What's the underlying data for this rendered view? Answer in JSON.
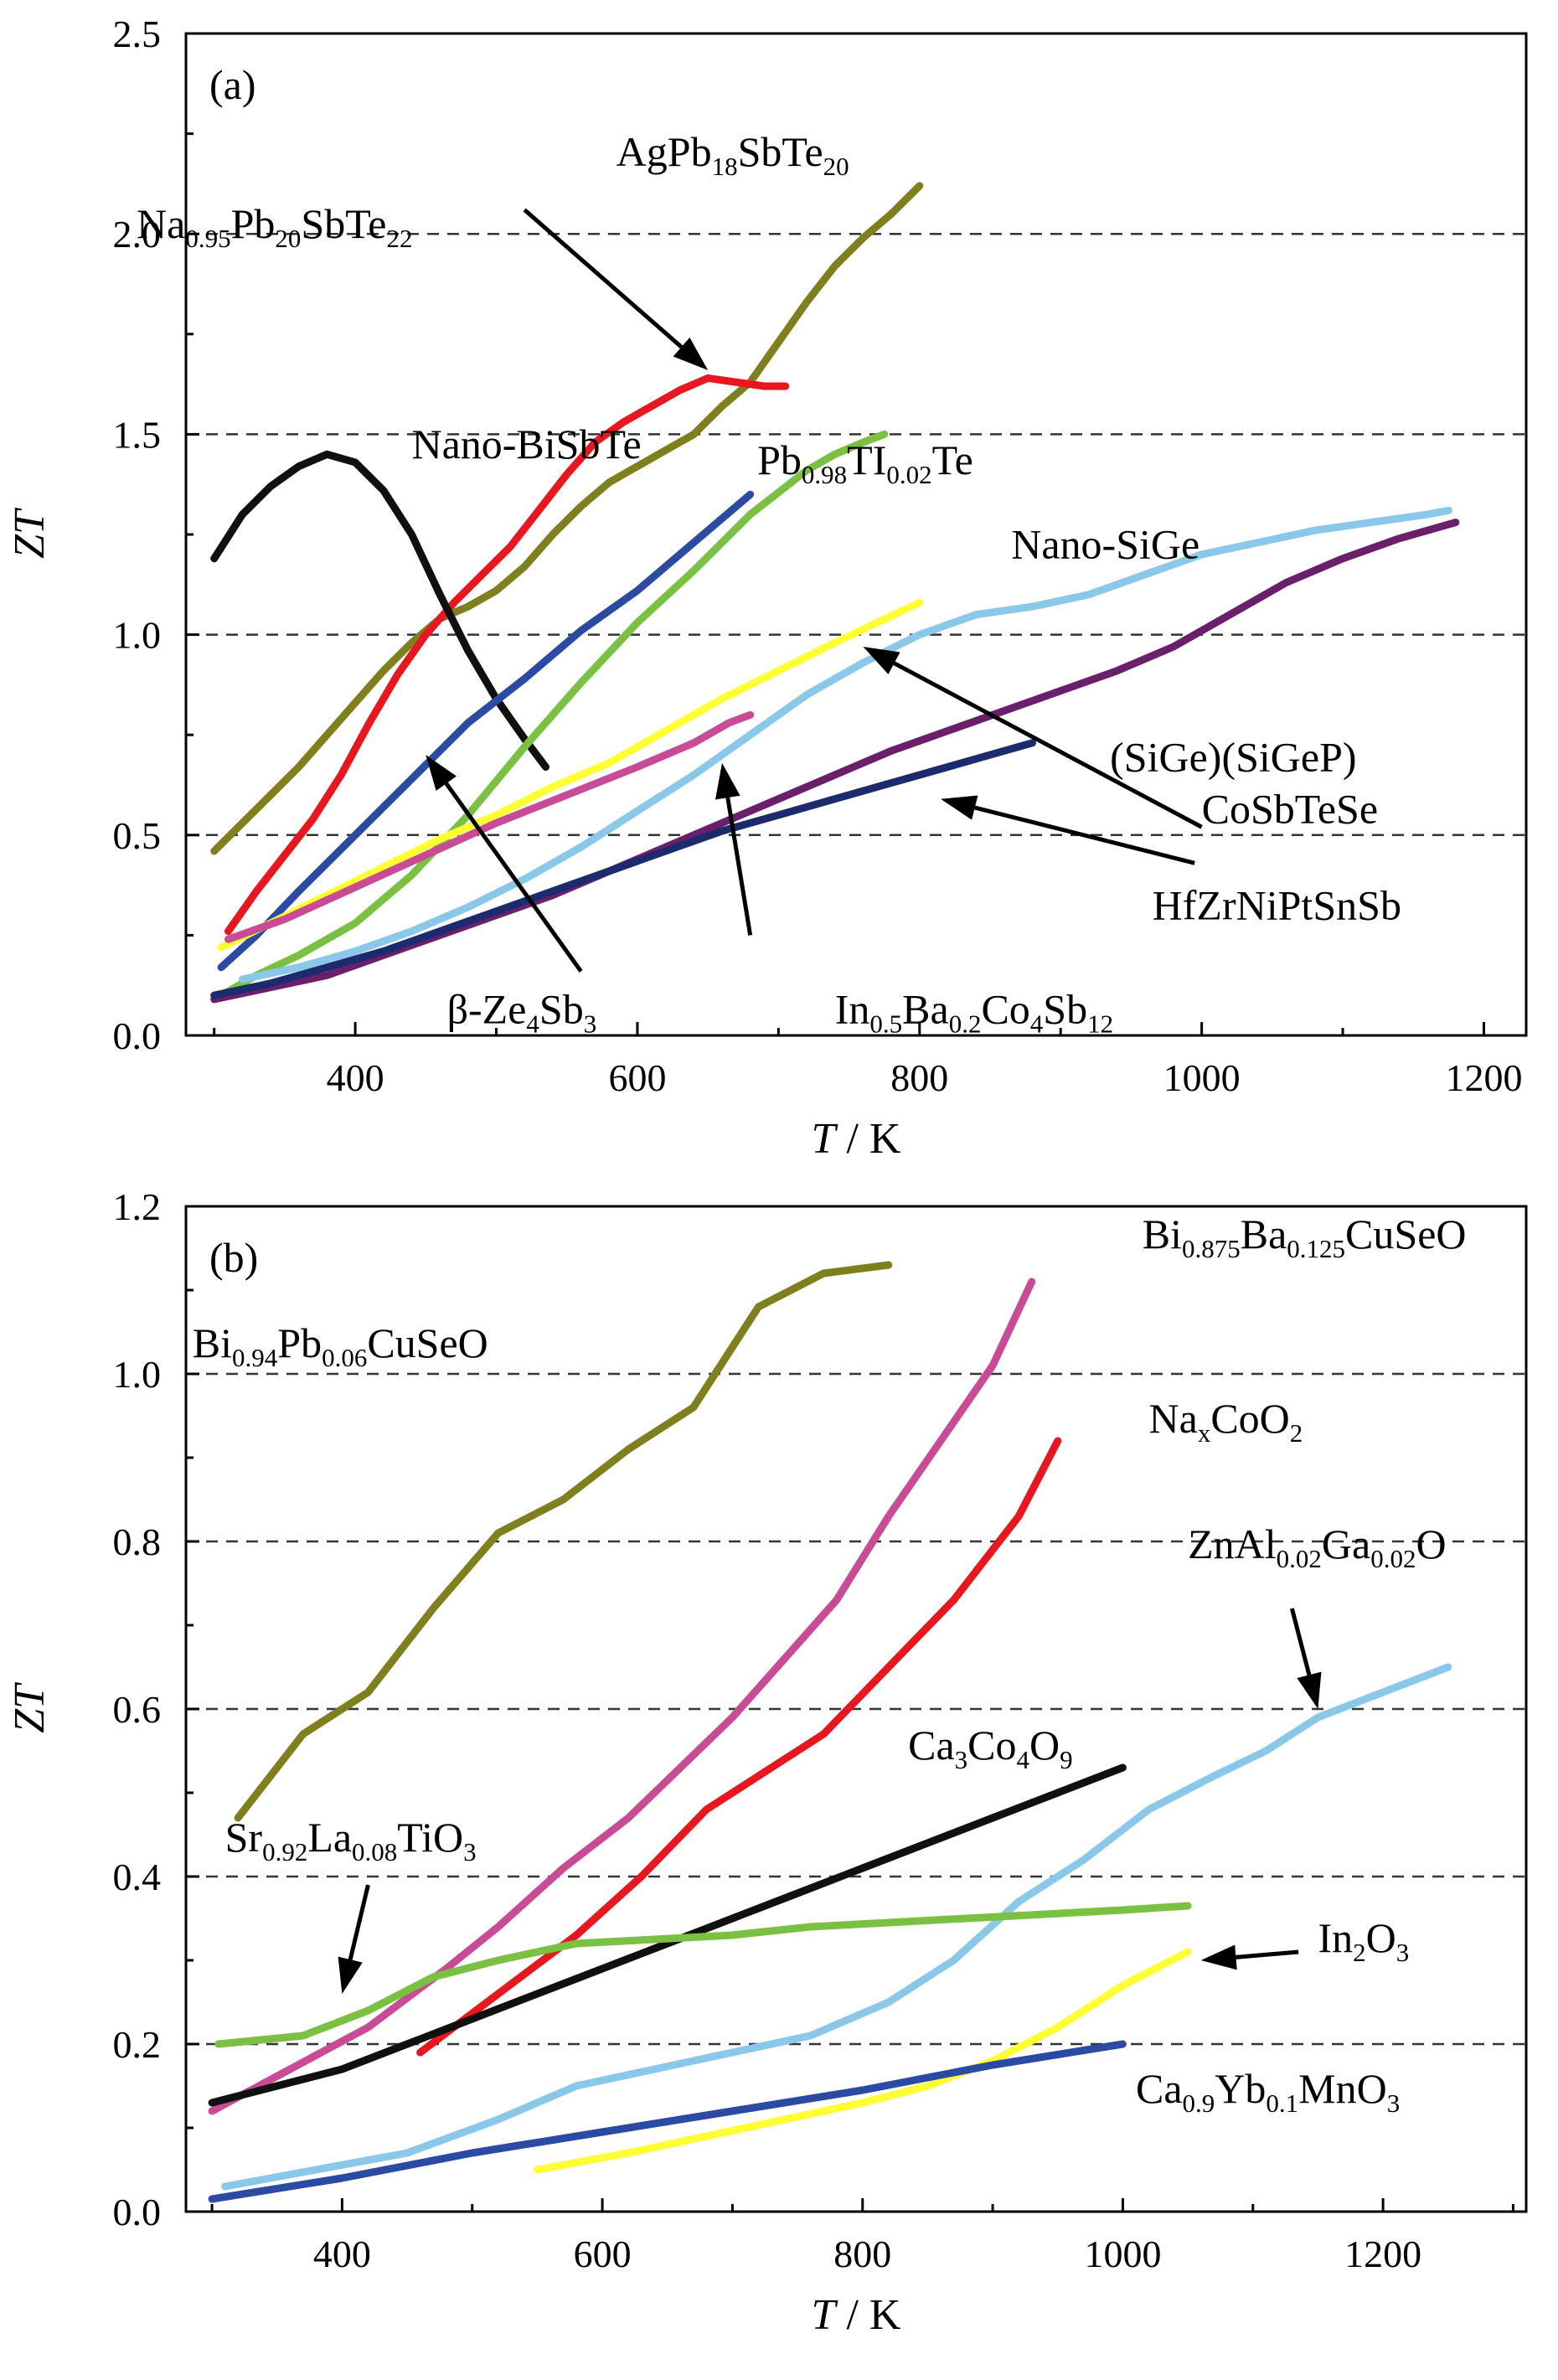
{
  "chart_data": [
    {
      "type": "line",
      "panel_label": "(a)",
      "xlabel_var": "T",
      "xlabel_unit": " / K",
      "ylabel": "ZT",
      "xlim": [
        280,
        1230
      ],
      "ylim": [
        0,
        2.5
      ],
      "xticks": [
        400,
        600,
        800,
        1000,
        1200
      ],
      "yticks": [
        0.0,
        0.5,
        1.0,
        1.5,
        2.0,
        2.5
      ],
      "ytick_labels": [
        "0.0",
        "0.5",
        "1.0",
        "1.5",
        "2.0",
        "2.5"
      ],
      "grid": "horizontal dashed at 0.5, 1.0, 1.5, 2.0",
      "series": [
        {
          "color": "#7f7f1e",
          "x": [
            300,
            320,
            340,
            360,
            380,
            400,
            420,
            440,
            460,
            480,
            500,
            520,
            540,
            560,
            580,
            600,
            620,
            640,
            660,
            680,
            700,
            720,
            740,
            760,
            780,
            800
          ],
          "y": [
            0.46,
            0.53,
            0.6,
            0.67,
            0.75,
            0.83,
            0.91,
            0.98,
            1.04,
            1.07,
            1.11,
            1.17,
            1.25,
            1.32,
            1.38,
            1.42,
            1.46,
            1.5,
            1.57,
            1.63,
            1.73,
            1.83,
            1.92,
            1.99,
            2.05,
            2.12
          ]
        },
        {
          "color": "#e8161e",
          "x": [
            310,
            330,
            350,
            370,
            390,
            410,
            430,
            450,
            470,
            490,
            510,
            530,
            550,
            570,
            590,
            610,
            630,
            650,
            670,
            690,
            705
          ],
          "y": [
            0.26,
            0.36,
            0.45,
            0.54,
            0.65,
            0.78,
            0.9,
            1.0,
            1.08,
            1.15,
            1.22,
            1.31,
            1.4,
            1.48,
            1.53,
            1.57,
            1.61,
            1.64,
            1.63,
            1.62,
            1.62
          ]
        },
        {
          "color": "#101010",
          "x": [
            300,
            320,
            340,
            360,
            380,
            400,
            420,
            440,
            460,
            480,
            500,
            520,
            535
          ],
          "y": [
            1.19,
            1.3,
            1.37,
            1.42,
            1.45,
            1.43,
            1.36,
            1.25,
            1.1,
            0.96,
            0.84,
            0.74,
            0.67
          ]
        },
        {
          "color": "#7ac143",
          "x": [
            305,
            330,
            360,
            400,
            440,
            480,
            520,
            560,
            600,
            640,
            680,
            720,
            740,
            760,
            775
          ],
          "y": [
            0.1,
            0.15,
            0.2,
            0.28,
            0.4,
            0.55,
            0.72,
            0.88,
            1.03,
            1.16,
            1.3,
            1.41,
            1.45,
            1.48,
            1.5
          ]
        },
        {
          "color": "#2a4aa3",
          "x": [
            305,
            330,
            360,
            400,
            440,
            480,
            520,
            560,
            600,
            640,
            680
          ],
          "y": [
            0.17,
            0.25,
            0.36,
            0.5,
            0.64,
            0.78,
            0.89,
            1.01,
            1.11,
            1.23,
            1.35
          ]
        },
        {
          "color": "#ffff33",
          "x": [
            305,
            340,
            380,
            420,
            460,
            500,
            540,
            580,
            620,
            660,
            700,
            740,
            770,
            800
          ],
          "y": [
            0.22,
            0.28,
            0.35,
            0.42,
            0.49,
            0.55,
            0.62,
            0.68,
            0.76,
            0.84,
            0.91,
            0.98,
            1.03,
            1.08
          ]
        },
        {
          "color": "#c94b96",
          "x": [
            310,
            350,
            400,
            450,
            500,
            550,
            600,
            640,
            665,
            680
          ],
          "y": [
            0.24,
            0.29,
            0.37,
            0.45,
            0.53,
            0.6,
            0.67,
            0.73,
            0.78,
            0.8
          ]
        },
        {
          "color": "#8ac8ea",
          "x": [
            320,
            360,
            400,
            440,
            480,
            520,
            560,
            600,
            640,
            680,
            720,
            760,
            800,
            840,
            880,
            920,
            960,
            1000,
            1040,
            1080,
            1120,
            1160,
            1175
          ],
          "y": [
            0.14,
            0.17,
            0.21,
            0.26,
            0.32,
            0.39,
            0.47,
            0.56,
            0.65,
            0.75,
            0.85,
            0.93,
            1.0,
            1.05,
            1.07,
            1.1,
            1.15,
            1.2,
            1.23,
            1.26,
            1.28,
            1.3,
            1.31
          ]
        },
        {
          "color": "#6b1f6b",
          "x": [
            300,
            340,
            380,
            420,
            460,
            500,
            540,
            580,
            620,
            660,
            700,
            740,
            780,
            820,
            860,
            900,
            940,
            980,
            1020,
            1060,
            1100,
            1140,
            1180
          ],
          "y": [
            0.09,
            0.12,
            0.15,
            0.2,
            0.25,
            0.3,
            0.35,
            0.41,
            0.47,
            0.53,
            0.59,
            0.65,
            0.71,
            0.76,
            0.81,
            0.86,
            0.91,
            0.97,
            1.05,
            1.13,
            1.19,
            1.24,
            1.28
          ]
        },
        {
          "color": "#1c2b6e",
          "x": [
            300,
            340,
            380,
            420,
            460,
            500,
            540,
            580,
            620,
            660,
            700,
            740,
            780,
            820,
            860,
            880
          ],
          "y": [
            0.1,
            0.13,
            0.17,
            0.21,
            0.26,
            0.31,
            0.36,
            0.41,
            0.46,
            0.51,
            0.55,
            0.59,
            0.63,
            0.67,
            0.71,
            0.73
          ]
        }
      ],
      "annotations": [
        {
          "text": "Na",
          "sub": [
            "0.95",
            "20",
            "22"
          ],
          "parts": [
            "Pb",
            "SbTe"
          ],
          "x": 245,
          "y": 1.99,
          "arrow": {
            "from": [
              520,
              2.06
            ],
            "to": [
              650,
              1.66
            ]
          }
        },
        {
          "text": "AgPb",
          "sub": [
            "18",
            "20"
          ],
          "parts": [
            "SbTe"
          ],
          "x": 585,
          "y": 2.17
        },
        {
          "text": "Nano-BiSbTe",
          "x": 440,
          "y": 1.44
        },
        {
          "text": "Pb",
          "sub": [
            "0.98",
            "0.02"
          ],
          "parts": [
            "TI",
            "Te"
          ],
          "x": 685,
          "y": 1.4
        },
        {
          "text": "Nano-SiGe",
          "x": 865,
          "y": 1.19
        },
        {
          "text": "(SiGe)(SiGeP)",
          "x": 935,
          "y": 0.66,
          "arrow": {
            "from": [
              1000,
              0.52
            ],
            "to": [
              760,
              0.97
            ]
          }
        },
        {
          "text": "CoSbTeSe",
          "x": 1000,
          "y": 0.53
        },
        {
          "text": "HfZrNiPtSnSb",
          "x": 965,
          "y": 0.29,
          "arrow": {
            "from": [
              995,
              0.43
            ],
            "to": [
              815,
              0.59
            ]
          }
        },
        {
          "text": "β-Ze",
          "sub": [
            "4",
            "3"
          ],
          "parts": [
            "Sb"
          ],
          "x": 465,
          "y": 0.03,
          "arrow": {
            "from": [
              560,
              0.16
            ],
            "to": [
              450,
              0.7
            ]
          }
        },
        {
          "text": "In",
          "sub": [
            "0.5",
            "0.2",
            "4",
            "12"
          ],
          "parts": [
            "Ba",
            "Co",
            "Sb"
          ],
          "x": 740,
          "y": 0.03,
          "arrow": {
            "from": [
              680,
              0.25
            ],
            "to": [
              660,
              0.68
            ]
          }
        }
      ]
    },
    {
      "type": "line",
      "panel_label": "(b)",
      "xlabel_var": "T",
      "xlabel_unit": " / K",
      "ylabel": "ZT",
      "xlim": [
        280,
        1310
      ],
      "ylim": [
        0,
        1.2
      ],
      "xticks": [
        400,
        600,
        800,
        1000,
        1200
      ],
      "yticks": [
        0.0,
        0.2,
        0.4,
        0.6,
        0.8,
        1.0,
        1.2
      ],
      "ytick_labels": [
        "0.0",
        "0.2",
        "0.4",
        "0.6",
        "0.8",
        "1.0",
        "1.2"
      ],
      "grid": "horizontal dashed at 0.2, 0.4, 0.6, 0.8, 1.0",
      "series": [
        {
          "color": "#7f7f1e",
          "x": [
            320,
            370,
            420,
            470,
            520,
            570,
            620,
            670,
            720,
            770,
            820
          ],
          "y": [
            0.47,
            0.57,
            0.62,
            0.72,
            0.81,
            0.85,
            0.91,
            0.96,
            1.08,
            1.12,
            1.13
          ]
        },
        {
          "color": "#c94b96",
          "x": [
            300,
            360,
            420,
            480,
            520,
            570,
            620,
            660,
            700,
            740,
            780,
            820,
            860,
            900,
            930
          ],
          "y": [
            0.12,
            0.17,
            0.22,
            0.29,
            0.34,
            0.41,
            0.47,
            0.53,
            0.59,
            0.66,
            0.73,
            0.83,
            0.92,
            1.01,
            1.11
          ]
        },
        {
          "color": "#e8161e",
          "x": [
            460,
            520,
            580,
            630,
            680,
            730,
            770,
            820,
            870,
            920,
            950
          ],
          "y": [
            0.19,
            0.26,
            0.33,
            0.4,
            0.48,
            0.53,
            0.57,
            0.65,
            0.73,
            0.83,
            0.92
          ]
        },
        {
          "color": "#8ac8ea",
          "x": [
            310,
            380,
            450,
            520,
            580,
            640,
            700,
            760,
            820,
            870,
            920,
            970,
            1020,
            1070,
            1110,
            1150,
            1200,
            1250
          ],
          "y": [
            0.03,
            0.05,
            0.07,
            0.11,
            0.15,
            0.17,
            0.19,
            0.21,
            0.25,
            0.3,
            0.37,
            0.42,
            0.48,
            0.52,
            0.55,
            0.59,
            0.62,
            0.65
          ]
        },
        {
          "color": "#101010",
          "x": [
            300,
            350,
            400,
            450,
            500,
            550,
            600,
            650,
            700,
            750,
            800,
            850,
            900,
            950,
            1000
          ],
          "y": [
            0.13,
            0.15,
            0.17,
            0.2,
            0.23,
            0.26,
            0.29,
            0.32,
            0.35,
            0.38,
            0.41,
            0.44,
            0.47,
            0.5,
            0.53
          ]
        },
        {
          "color": "#7ac143",
          "x": [
            305,
            370,
            420,
            470,
            520,
            580,
            640,
            700,
            760,
            820,
            880,
            940,
            1000,
            1050
          ],
          "y": [
            0.2,
            0.21,
            0.24,
            0.28,
            0.3,
            0.32,
            0.325,
            0.33,
            0.34,
            0.345,
            0.35,
            0.355,
            0.36,
            0.365
          ]
        },
        {
          "color": "#ffff33",
          "x": [
            550,
            620,
            680,
            740,
            800,
            850,
            900,
            950,
            1000,
            1050
          ],
          "y": [
            0.05,
            0.07,
            0.09,
            0.11,
            0.13,
            0.15,
            0.18,
            0.22,
            0.27,
            0.31
          ]
        },
        {
          "color": "#2a4aa3",
          "x": [
            300,
            400,
            500,
            600,
            700,
            800,
            900,
            1000
          ],
          "y": [
            0.015,
            0.04,
            0.07,
            0.095,
            0.12,
            0.145,
            0.175,
            0.2
          ]
        }
      ],
      "annotations": [
        {
          "text": "Bi",
          "sub": [
            "0.875",
            "0.125"
          ],
          "parts": [
            "Ba",
            "CuSeO"
          ],
          "x": 1015,
          "y": 1.15
        },
        {
          "text": "Bi",
          "sub": [
            "0.94",
            "0.06"
          ],
          "parts": [
            "Pb",
            "CuSeO"
          ],
          "x": 285,
          "y": 1.02
        },
        {
          "text": "Na",
          "sub": [
            "x",
            "2"
          ],
          "parts": [
            "CoO"
          ],
          "x": 1020,
          "y": 0.93
        },
        {
          "text": "ZnAl",
          "sub": [
            "0.02",
            "0.02"
          ],
          "parts": [
            "Ga",
            "O"
          ],
          "x": 1050,
          "y": 0.78,
          "arrow": {
            "from": [
              1130,
              0.72
            ],
            "to": [
              1150,
              0.6
            ]
          }
        },
        {
          "text": "Ca",
          "sub": [
            "3",
            "4",
            "9"
          ],
          "parts": [
            "Co",
            "O"
          ],
          "x": 835,
          "y": 0.54
        },
        {
          "text": "Sr",
          "sub": [
            "0.92",
            "0.08",
            "3"
          ],
          "parts": [
            "La",
            "TiO"
          ],
          "x": 310,
          "y": 0.43,
          "arrow": {
            "from": [
              420,
              0.39
            ],
            "to": [
              400,
              0.26
            ]
          }
        },
        {
          "text": "In",
          "sub": [
            "2",
            "3"
          ],
          "parts": [
            "O"
          ],
          "x": 1150,
          "y": 0.31,
          "arrow": {
            "from": [
              1135,
              0.31
            ],
            "to": [
              1060,
              0.3
            ]
          }
        },
        {
          "text": "Ca",
          "sub": [
            "0.9",
            "0.1",
            "3"
          ],
          "parts": [
            "Yb",
            "MnO"
          ],
          "x": 1010,
          "y": 0.13
        }
      ]
    }
  ]
}
